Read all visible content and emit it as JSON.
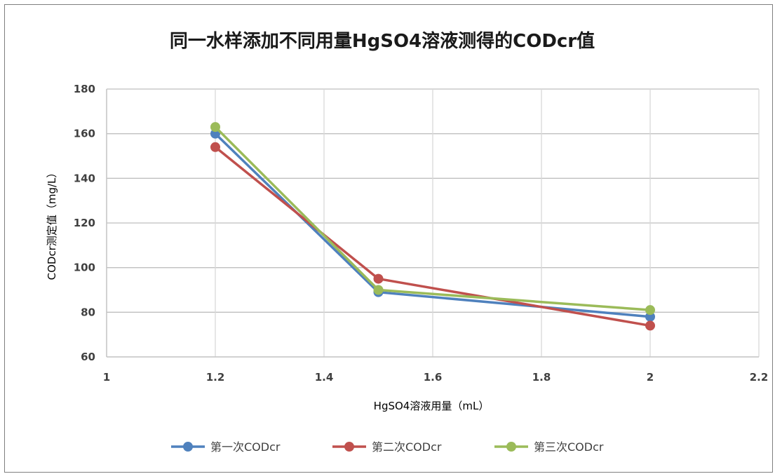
{
  "chart_data": {
    "type": "line",
    "title": "同一水样添加不同用量HgSO4溶液测得的CODcr值",
    "xlabel": "HgSO4溶液用量（mL）",
    "ylabel": "CODcr测定值（mg/L）",
    "xlim": [
      1,
      2.2
    ],
    "ylim": [
      60,
      180
    ],
    "x_ticks": [
      "1",
      "1.2",
      "1.4",
      "1.6",
      "1.8",
      "2",
      "2.2"
    ],
    "y_ticks": [
      "60",
      "80",
      "100",
      "120",
      "140",
      "160",
      "180"
    ],
    "grid": true,
    "legend_position": "bottom",
    "series": [
      {
        "name": "第一次CODcr",
        "color": "#4f81bd",
        "x": [
          1.2,
          1.5,
          2.0
        ],
        "y": [
          160,
          89,
          78
        ]
      },
      {
        "name": "第二次CODcr",
        "color": "#c0504d",
        "x": [
          1.2,
          1.5,
          2.0
        ],
        "y": [
          154,
          95,
          74
        ]
      },
      {
        "name": "第三次CODcr",
        "color": "#9bbb59",
        "x": [
          1.2,
          1.5,
          2.0
        ],
        "y": [
          163,
          90,
          81
        ]
      }
    ]
  }
}
